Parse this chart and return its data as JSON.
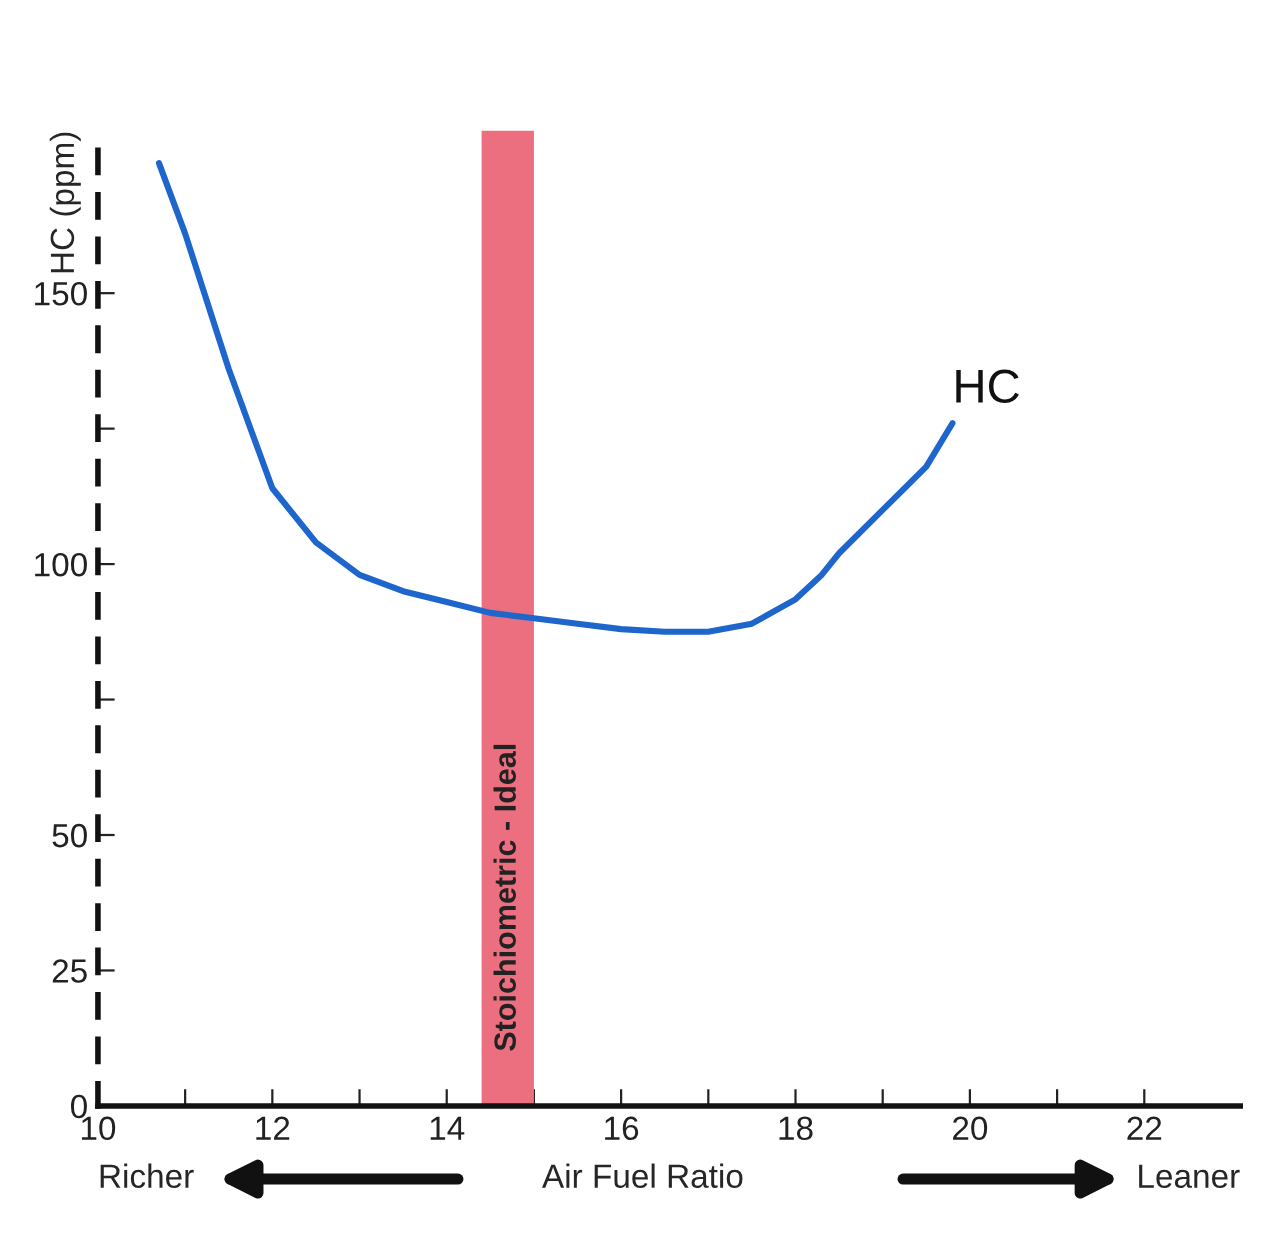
{
  "chart_data": {
    "type": "line",
    "xlabel": "Air Fuel Ratio",
    "ylabel": "HC (ppm)",
    "annotations": [
      "Richer",
      "Leaner"
    ],
    "series": [
      {
        "name": "HC",
        "color": "#1f66cc",
        "x": [
          10.7,
          11,
          11.5,
          12,
          12.5,
          13,
          13.5,
          14,
          14.5,
          15,
          15.5,
          16,
          16.5,
          17,
          17.5,
          18,
          18.3,
          18.5,
          19,
          19.5,
          19.8
        ],
        "values": [
          174,
          161,
          136,
          114,
          104,
          98,
          95,
          93,
          91,
          90,
          89,
          88,
          87.5,
          87.5,
          89,
          93.5,
          98,
          102,
          110,
          118,
          126
        ]
      }
    ],
    "bands": [
      {
        "axis": "x",
        "from": 14.4,
        "to": 15.0,
        "label": "Stoichiometric - Ideal",
        "color": "#ec6f80"
      }
    ],
    "xlim": [
      10,
      23.1
    ],
    "xticks": [
      10,
      {
        "value": 11,
        "label": null
      },
      12,
      {
        "value": 13,
        "label": null
      },
      14,
      {
        "value": 15,
        "label": null
      },
      16,
      {
        "value": 17,
        "label": null
      },
      18,
      {
        "value": 19,
        "label": null
      },
      20,
      {
        "value": 21,
        "label": null
      },
      22
    ],
    "ylim": [
      0,
      180
    ],
    "yticks": [
      0,
      25,
      50,
      {
        "value": 75,
        "label": null
      },
      100,
      {
        "value": 125,
        "label": null
      },
      150
    ],
    "grid": false,
    "legend": false,
    "marker": "none",
    "line_style": "solid"
  }
}
